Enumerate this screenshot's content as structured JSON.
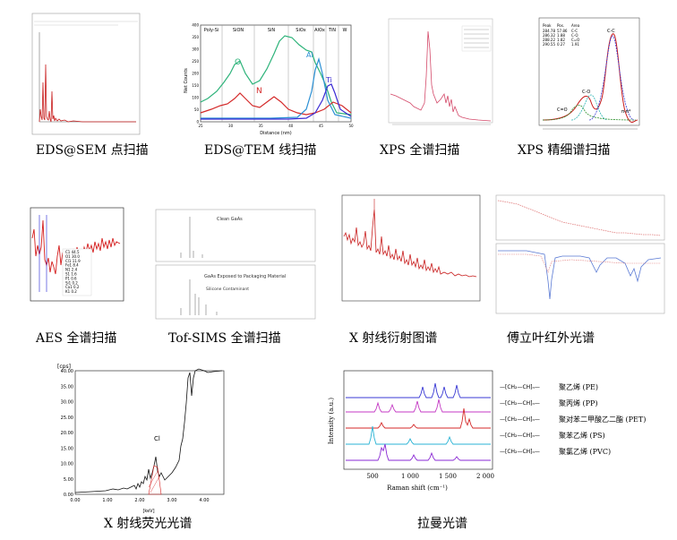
{
  "captions": {
    "eds_sem": "EDS@SEM 点扫描",
    "eds_tem": "EDS@TEM 线扫描",
    "xps_survey": "XPS 全谱扫描",
    "xps_fine": "XPS 精细谱扫描",
    "aes": "AES 全谱扫描",
    "tofsims": "Tof-SIMS 全谱扫描",
    "xrd": "X 射线衍射图谱",
    "ftir": "傅立叶红外光谱",
    "xrf": "X 射线荧光光谱",
    "raman": "拉曼光谱"
  },
  "eds_tem": {
    "regions": [
      "Poly-Si",
      "SiON",
      "SiN",
      "SiOx",
      "AlOx",
      "TiN",
      "W"
    ],
    "ylabel": "Net Counts",
    "xlabel": "Distance (nm)",
    "xticks": [
      "25",
      "30",
      "35",
      "40",
      "45",
      "50"
    ],
    "yticks": [
      "0",
      "50",
      "100",
      "150",
      "200",
      "250",
      "300",
      "350",
      "400"
    ],
    "series_labels": [
      "O",
      "N",
      "Al",
      "Ti"
    ],
    "colors": {
      "O": "#2db37a",
      "N": "#d42a2a",
      "Al": "#2a8fd4",
      "Ti": "#3a2ad4"
    }
  },
  "tofsims": {
    "top_title": "Clean GaAs",
    "bottom_title": "GaAs Exposed to Packaging Material",
    "annotation": "Silicone Contaminant"
  },
  "xps_fine": {
    "table_header": [
      "Peak",
      "Pos.",
      "Area"
    ],
    "table_rows": [
      [
        "284.78",
        "57.86",
        "C-C"
      ],
      [
        "286.32",
        "1.88",
        "C-O"
      ],
      [
        "288.22",
        "1.82",
        "C=O"
      ],
      [
        "290.55",
        "0.27",
        "1.91"
      ]
    ],
    "peak_labels": [
      "C-C",
      "C-O",
      "C=O",
      "π-π*"
    ]
  },
  "aes": {
    "legend_rows": [
      "C1 44.5",
      "O1 30.0",
      "Cl1 11.9",
      "Fe1 8.4",
      "N1 2.4",
      "S1 1.6",
      "P1 0.6",
      "Si1 0.2",
      "Ca1 0.2",
      "K1 0.2"
    ]
  },
  "xrf": {
    "ylabel": "[cps]",
    "yticks": [
      "0.00",
      "5.00",
      "10.00",
      "15.00",
      "20.00",
      "25.00",
      "30.00",
      "35.00",
      "40.00"
    ],
    "xticks": [
      "0.00",
      "1.00",
      "2.00",
      "3.00",
      "4.00"
    ],
    "xlabel": "[keV]",
    "peak_label": "Cl"
  },
  "raman": {
    "ylabel": "Intensity (a.u.)",
    "xlabel": "Raman shift (cm⁻¹)",
    "xticks": [
      "500",
      "1 000",
      "1 500",
      "2 000"
    ],
    "legend": [
      "聚乙烯 (PE)",
      "聚丙烯 (PP)",
      "聚对苯二甲酸乙二酯 (PET)",
      "聚苯乙烯 (PS)",
      "聚氯乙烯 (PVC)"
    ],
    "colors": [
      "#3a3ad4",
      "#c43ac4",
      "#d42a2a",
      "#2ab3d4",
      "#8a2ad4"
    ]
  }
}
